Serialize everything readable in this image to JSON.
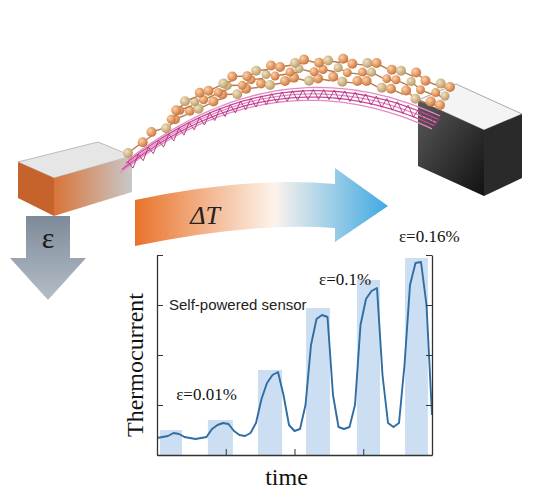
{
  "chart_data": {
    "type": "line",
    "title": "Self-powered sensor",
    "x_label": "time",
    "y_label": "Thermocurrent",
    "xlim": [
      0,
      100
    ],
    "ylim": [
      0,
      10
    ],
    "xticks": [
      0,
      25,
      50,
      75,
      100
    ],
    "yticks": [
      0,
      2.5,
      5,
      7.5,
      10
    ],
    "tick_labels": false,
    "grid": false,
    "series": [
      {
        "type": "bar",
        "color": "#c3d8ee",
        "x_start": [
          1.1,
          18.5,
          36.7,
          54.2,
          72.7,
          90.2
        ],
        "x_end": [
          9.1,
          27.6,
          45.5,
          62.9,
          81.1,
          98.5
        ],
        "values": [
          1.25,
          1.75,
          4.25,
          7.35,
          8.75,
          9.85
        ]
      },
      {
        "type": "line",
        "color": "#2f6da3",
        "x": [
          0,
          2,
          4,
          6,
          8,
          10,
          12,
          14,
          16,
          18,
          20,
          22,
          24,
          26,
          28,
          30,
          32,
          34,
          36,
          38,
          40,
          42,
          44,
          46,
          48,
          50,
          52,
          54,
          56,
          58,
          60,
          62,
          64,
          66,
          68,
          70,
          72,
          74,
          76,
          78,
          80,
          82,
          84,
          86,
          88,
          90,
          92,
          94,
          96,
          98,
          100
        ],
        "values": [
          0.85,
          0.9,
          0.95,
          1.1,
          1.05,
          0.9,
          0.85,
          0.8,
          0.85,
          0.9,
          1.3,
          1.5,
          1.6,
          1.55,
          1.2,
          1.0,
          0.95,
          1.1,
          1.6,
          2.8,
          3.6,
          4.0,
          4.15,
          3.0,
          1.5,
          1.2,
          1.3,
          2.5,
          5.5,
          6.8,
          7.0,
          6.9,
          3.0,
          1.4,
          1.3,
          1.4,
          2.5,
          6.5,
          7.8,
          8.2,
          8.35,
          4.0,
          1.6,
          1.4,
          1.6,
          4.5,
          8.5,
          9.6,
          9.65,
          7.5,
          2.0
        ]
      }
    ],
    "annotations": [
      {
        "text": "ε=0.01%",
        "x": 18,
        "y": 2.75
      },
      {
        "text": "ε=0.1%",
        "x": 68.4,
        "y": 8.5
      },
      {
        "text": "ε=0.16%",
        "x": 99,
        "y": 10.65
      }
    ]
  },
  "diagram": {
    "gradient_label": "ΔT",
    "strain_label": "ε"
  }
}
